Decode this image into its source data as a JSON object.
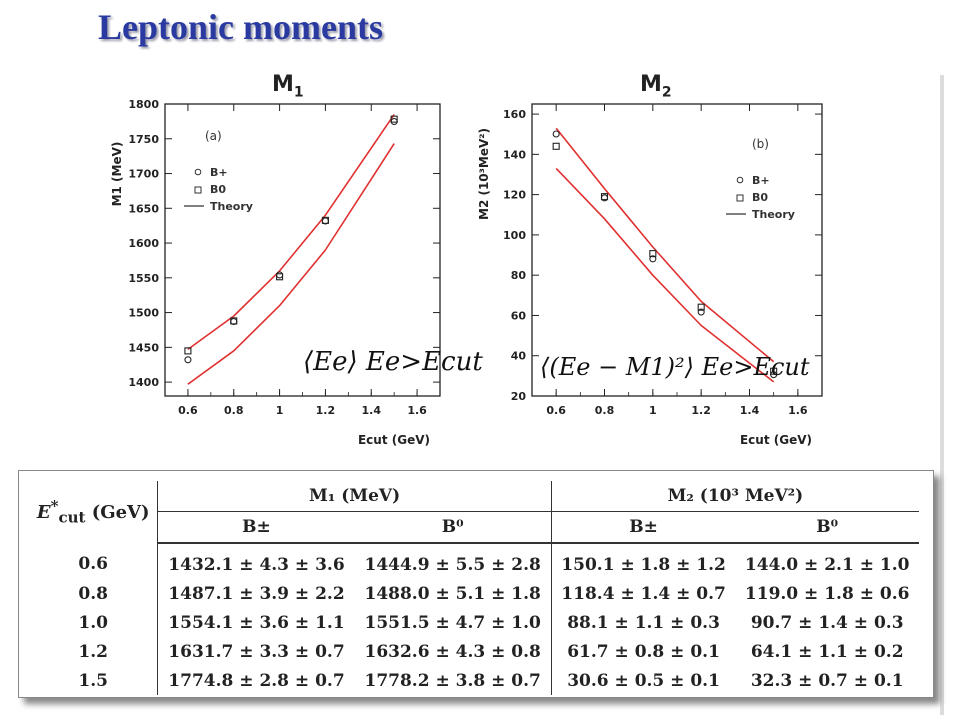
{
  "page": {
    "title": "Leptonic moments"
  },
  "chart_data": [
    {
      "type": "scatter",
      "panel_title": "M1",
      "panel_tag": "(a)",
      "xlabel": "E_cut (GeV)",
      "ylabel": "M1 (MeV)",
      "xlim": [
        0.5,
        1.7
      ],
      "ylim": [
        1380,
        1800
      ],
      "xticks": [
        0.6,
        0.8,
        1.0,
        1.2,
        1.4,
        1.6
      ],
      "xtick_labels": [
        "0.6",
        "0.8",
        "1",
        "1.2",
        "1.4",
        "1.6"
      ],
      "yticks": [
        1400,
        1450,
        1500,
        1550,
        1600,
        1650,
        1700,
        1750,
        1800
      ],
      "legend": [
        "B+",
        "B0",
        "Theory"
      ],
      "legend_position": "top-left",
      "formula": "⟨Ee⟩ Ee>Ecut",
      "series": [
        {
          "name": "B+",
          "marker": "circle",
          "x": [
            0.6,
            0.8,
            1.0,
            1.2,
            1.5
          ],
          "y": [
            1432.1,
            1487.1,
            1554.1,
            1631.7,
            1774.8
          ]
        },
        {
          "name": "B0",
          "marker": "square",
          "x": [
            0.6,
            0.8,
            1.0,
            1.2,
            1.5
          ],
          "y": [
            1444.9,
            1488.0,
            1551.5,
            1632.6,
            1778.2
          ]
        }
      ],
      "theory_band": {
        "name": "Theory",
        "upper": {
          "x": [
            0.6,
            0.8,
            1.0,
            1.2,
            1.5
          ],
          "y": [
            1447,
            1495,
            1560,
            1640,
            1785
          ]
        },
        "lower": {
          "x": [
            0.6,
            0.8,
            1.0,
            1.2,
            1.5
          ],
          "y": [
            1397,
            1445,
            1510,
            1590,
            1743
          ]
        }
      }
    },
    {
      "type": "scatter",
      "panel_title": "M2",
      "panel_tag": "(b)",
      "xlabel": "E_cut (GeV)",
      "ylabel": "M2 (10³MeV²)",
      "xlim": [
        0.5,
        1.7
      ],
      "ylim": [
        20,
        165
      ],
      "xticks": [
        0.6,
        0.8,
        1.0,
        1.2,
        1.4,
        1.6
      ],
      "xtick_labels": [
        "0.6",
        "0.8",
        "1",
        "1.2",
        "1.4",
        "1.6"
      ],
      "yticks": [
        20,
        40,
        60,
        80,
        100,
        120,
        140,
        160
      ],
      "legend": [
        "B+",
        "B0",
        "Theory"
      ],
      "legend_position": "top-right",
      "formula": "⟨(Ee − M1)²⟩ Ee>Ecut",
      "series": [
        {
          "name": "B+",
          "marker": "circle",
          "x": [
            0.6,
            0.8,
            1.0,
            1.2,
            1.5
          ],
          "y": [
            150.1,
            118.4,
            88.1,
            61.7,
            30.6
          ]
        },
        {
          "name": "B0",
          "marker": "square",
          "x": [
            0.6,
            0.8,
            1.0,
            1.2,
            1.5
          ],
          "y": [
            144.0,
            119.0,
            90.7,
            64.1,
            32.3
          ]
        }
      ],
      "theory_band": {
        "name": "Theory",
        "upper": {
          "x": [
            0.6,
            0.8,
            1.0,
            1.2,
            1.5
          ],
          "y": [
            153,
            123,
            94,
            67,
            37
          ]
        },
        "lower": {
          "x": [
            0.6,
            0.8,
            1.0,
            1.2,
            1.5
          ],
          "y": [
            133,
            108,
            80,
            55,
            27
          ]
        }
      }
    }
  ],
  "table": {
    "cut_header": "E*cut (GeV)",
    "group_headers": [
      "M₁ (MeV)",
      "M₂ (10³ MeV²)"
    ],
    "sub_headers": [
      "B±",
      "B⁰",
      "B±",
      "B⁰"
    ],
    "rows": [
      {
        "cut": "0.6",
        "cells": [
          "1432.1 ± 4.3 ± 3.6",
          "1444.9 ± 5.5 ± 2.8",
          "150.1 ± 1.8 ± 1.2",
          "144.0 ± 2.1 ± 1.0"
        ]
      },
      {
        "cut": "0.8",
        "cells": [
          "1487.1 ± 3.9 ± 2.2",
          "1488.0 ± 5.1 ± 1.8",
          "118.4 ± 1.4 ± 0.7",
          "119.0 ± 1.8 ± 0.6"
        ]
      },
      {
        "cut": "1.0",
        "cells": [
          "1554.1 ± 3.6 ± 1.1",
          "1551.5 ± 4.7 ± 1.0",
          "88.1 ± 1.1 ± 0.3",
          "90.7 ± 1.4 ± 0.3"
        ]
      },
      {
        "cut": "1.2",
        "cells": [
          "1631.7 ± 3.3 ± 0.7",
          "1632.6 ± 4.3 ± 0.8",
          "61.7 ± 0.8 ± 0.1",
          "64.1 ± 1.1 ± 0.2"
        ]
      },
      {
        "cut": "1.5",
        "cells": [
          "1774.8 ± 2.8 ± 0.7",
          "1778.2 ± 3.8 ± 0.7",
          "30.6 ± 0.5 ± 0.1",
          "32.3 ± 0.7 ± 0.1"
        ]
      }
    ]
  }
}
